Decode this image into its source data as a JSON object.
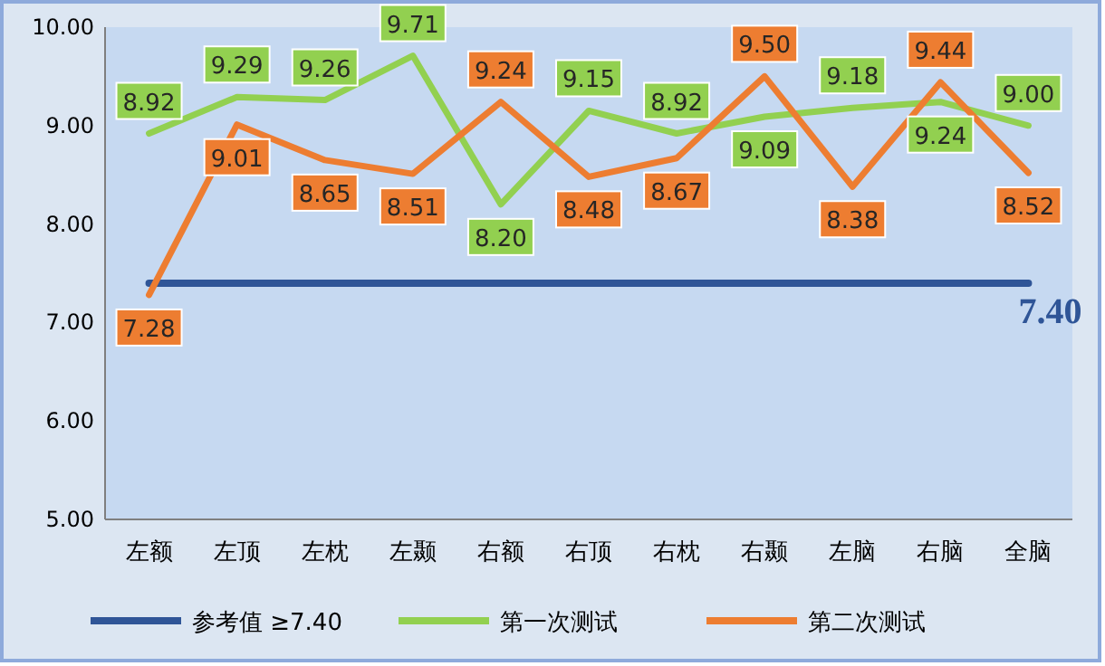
{
  "chart_data": {
    "type": "line",
    "categories": [
      "左额",
      "左顶",
      "左枕",
      "左颞",
      "右额",
      "右顶",
      "右枕",
      "右颞",
      "左脑",
      "右脑",
      "全脑"
    ],
    "series": [
      {
        "name": "参考值 ≥7.40",
        "color": "#2f5597",
        "values": [
          7.4,
          7.4,
          7.4,
          7.4,
          7.4,
          7.4,
          7.4,
          7.4,
          7.4,
          7.4,
          7.4
        ],
        "value_labels": [
          null,
          null,
          null,
          null,
          null,
          null,
          null,
          null,
          null,
          null,
          "7.40"
        ]
      },
      {
        "name": "第一次测试",
        "color": "#92d050",
        "values": [
          8.92,
          9.29,
          9.26,
          9.71,
          8.2,
          9.15,
          8.92,
          9.09,
          9.18,
          9.24,
          9.0
        ],
        "value_labels": [
          "8.92",
          "9.29",
          "9.26",
          "9.71",
          "8.20",
          "9.15",
          "8.92",
          "9.09",
          "9.18",
          "9.24",
          "9.00"
        ]
      },
      {
        "name": "第二次测试",
        "color": "#ed7d31",
        "values": [
          7.28,
          9.01,
          8.65,
          8.51,
          9.24,
          8.48,
          8.67,
          9.5,
          8.38,
          9.44,
          8.52
        ],
        "value_labels": [
          "7.28",
          "9.01",
          "8.65",
          "8.51",
          "9.24",
          "8.48",
          "8.67",
          "9.50",
          "8.38",
          "9.44",
          "8.52"
        ]
      }
    ],
    "ylim": [
      5,
      10
    ],
    "yticks": [
      {
        "value": 5,
        "label": "5.00"
      },
      {
        "value": 6,
        "label": "6.00"
      },
      {
        "value": 7,
        "label": "7.00"
      },
      {
        "value": 8,
        "label": "8.00"
      },
      {
        "value": 9,
        "label": "9.00"
      },
      {
        "value": 10,
        "label": "10.00"
      }
    ],
    "legend": "bottom"
  }
}
